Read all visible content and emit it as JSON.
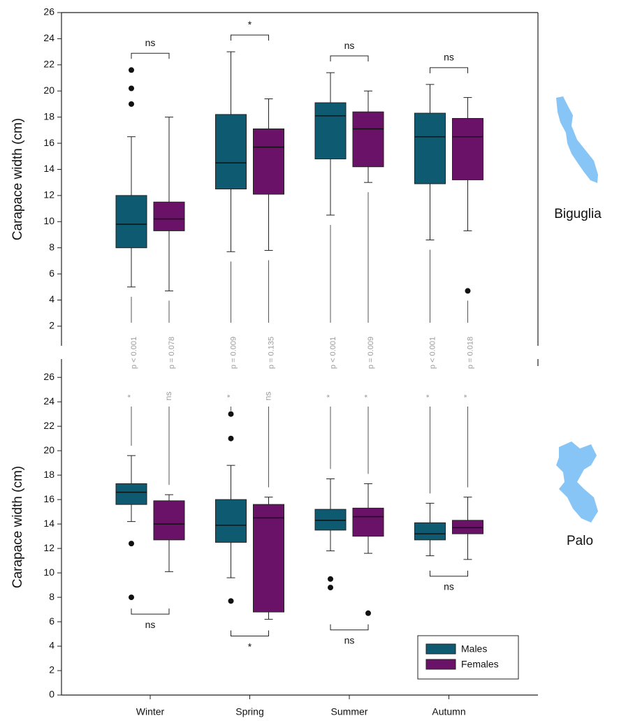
{
  "chart_data": [
    {
      "type": "box",
      "site": "Biguglia",
      "y_label": "Carapace width (cm)",
      "ylim": [
        0.5,
        26
      ],
      "yticks": [
        2,
        4,
        6,
        8,
        10,
        12,
        14,
        16,
        18,
        20,
        22,
        24,
        26
      ],
      "comparisons": [
        "ns",
        "*",
        "ns",
        "ns"
      ],
      "site_comparisons": {
        "significance": [
          [
            "*",
            "*",
            "*",
            "*"
          ],
          [
            "ns",
            "ns",
            "*",
            "*"
          ]
        ],
        "p_values": [
          [
            "p < 0.001",
            "p = 0.009",
            "p < 0.001",
            "p < 0.001"
          ],
          [
            "p = 0.078",
            "p = 0.135",
            "p = 0.009",
            "p = 0.018"
          ]
        ]
      },
      "series": [
        {
          "color": "#0e5a70",
          "whislo": [
            5.0,
            7.7,
            10.5,
            8.6
          ],
          "q1": [
            8.0,
            12.5,
            14.8,
            12.9
          ],
          "median": [
            9.8,
            14.5,
            18.1,
            16.5
          ],
          "q3": [
            12.0,
            18.2,
            19.1,
            18.3
          ],
          "whishi": [
            16.5,
            23.0,
            21.4,
            20.5
          ],
          "outliers": [
            [
              19.0,
              20.2,
              21.6
            ],
            [],
            [],
            []
          ]
        },
        {
          "color": "#6a1268",
          "whislo": [
            4.7,
            7.8,
            13.0,
            9.3
          ],
          "q1": [
            9.3,
            12.1,
            14.2,
            13.2
          ],
          "median": [
            10.2,
            15.7,
            17.1,
            16.5
          ],
          "q3": [
            11.5,
            17.1,
            18.4,
            17.9
          ],
          "whishi": [
            18.0,
            19.4,
            20.0,
            19.5
          ],
          "outliers": [
            [],
            [],
            [],
            [
              4.7
            ]
          ]
        }
      ]
    },
    {
      "type": "box",
      "site": "Palo",
      "y_label": "Carapace width (cm)",
      "categories": [
        "Winter",
        "Spring",
        "Summer",
        "Autumn"
      ],
      "ylim": [
        0,
        27.5
      ],
      "yticks": [
        0,
        2,
        4,
        6,
        8,
        10,
        12,
        14,
        16,
        18,
        20,
        22,
        24,
        26
      ],
      "comparisons": [
        "ns",
        "*",
        "ns",
        "ns"
      ],
      "legend": "lower right",
      "series": [
        {
          "name": "Males",
          "color": "#0e5a70",
          "whislo": [
            14.2,
            9.6,
            11.8,
            11.4
          ],
          "q1": [
            15.6,
            12.5,
            13.5,
            12.7
          ],
          "median": [
            16.6,
            13.9,
            14.3,
            13.2
          ],
          "q3": [
            17.3,
            16.0,
            15.2,
            14.1
          ],
          "whishi": [
            19.6,
            18.8,
            17.7,
            15.7
          ],
          "outliers": [
            [
              12.4,
              8.0
            ],
            [
              21.0,
              23.0,
              7.7
            ],
            [
              9.5,
              8.8
            ],
            []
          ]
        },
        {
          "name": "Females",
          "color": "#6a1268",
          "whislo": [
            10.1,
            6.2,
            11.6,
            11.1
          ],
          "q1": [
            12.7,
            6.8,
            13.0,
            13.2
          ],
          "median": [
            14.0,
            14.5,
            14.6,
            13.7
          ],
          "q3": [
            15.9,
            15.6,
            15.3,
            14.3
          ],
          "whishi": [
            16.4,
            16.2,
            17.3,
            16.2
          ],
          "outliers": [
            [],
            [],
            [
              6.7
            ],
            []
          ]
        }
      ]
    }
  ]
}
